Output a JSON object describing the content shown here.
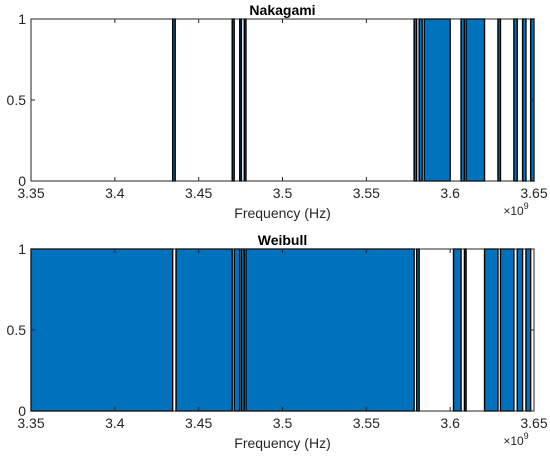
{
  "chart_data": [
    {
      "type": "bar",
      "title": "Nakagami",
      "xlabel": "Frequency (Hz)",
      "ylabel": "",
      "x_multiplier_base": "×10",
      "x_multiplier_exp": "9",
      "xlim": [
        3.35,
        3.65
      ],
      "ylim": [
        0,
        1
      ],
      "x_ticks": [
        3.35,
        3.4,
        3.45,
        3.5,
        3.55,
        3.6,
        3.65
      ],
      "x_tick_labels": [
        "3.35",
        "3.4",
        "3.45",
        "3.5",
        "3.55",
        "3.6",
        "3.65"
      ],
      "y_ticks": [
        0,
        0.5,
        1
      ],
      "y_tick_labels": [
        "0",
        "0.5",
        "1"
      ],
      "bar_color": "#0072BD",
      "edge_color": "#000000",
      "intervals_value_1": [
        [
          3.4345,
          3.436
        ],
        [
          3.47,
          3.4712
        ],
        [
          3.4745,
          3.4755
        ],
        [
          3.4772,
          3.4782
        ],
        [
          3.5785,
          3.58
        ],
        [
          3.5815,
          3.5833
        ],
        [
          3.5845,
          3.6
        ],
        [
          3.6065,
          3.6085
        ],
        [
          3.6095,
          3.6205
        ],
        [
          3.6285,
          3.63
        ],
        [
          3.638,
          3.64
        ],
        [
          3.6432,
          3.6452
        ],
        [
          3.648,
          3.65
        ]
      ]
    },
    {
      "type": "bar",
      "title": "Weibull",
      "xlabel": "Frequency (Hz)",
      "ylabel": "",
      "x_multiplier_base": "×10",
      "x_multiplier_exp": "9",
      "xlim": [
        3.35,
        3.65
      ],
      "ylim": [
        0,
        1
      ],
      "x_ticks": [
        3.35,
        3.4,
        3.45,
        3.5,
        3.55,
        3.6,
        3.65
      ],
      "x_tick_labels": [
        "3.35",
        "3.4",
        "3.45",
        "3.5",
        "3.55",
        "3.6",
        "3.65"
      ],
      "y_ticks": [
        0,
        0.5,
        1
      ],
      "y_tick_labels": [
        "0",
        "0.5",
        "1"
      ],
      "bar_color": "#0072BD",
      "edge_color": "#000000",
      "intervals_value_1": [
        [
          3.35,
          3.4345
        ],
        [
          3.4365,
          3.47
        ],
        [
          3.4712,
          3.4745
        ],
        [
          3.4755,
          3.4772
        ],
        [
          3.4782,
          3.5785
        ],
        [
          3.58,
          3.5815
        ],
        [
          3.602,
          3.6065
        ],
        [
          3.6085,
          3.6095
        ],
        [
          3.6205,
          3.6285
        ],
        [
          3.63,
          3.638
        ],
        [
          3.64,
          3.6432
        ],
        [
          3.6452,
          3.648
        ]
      ]
    }
  ]
}
